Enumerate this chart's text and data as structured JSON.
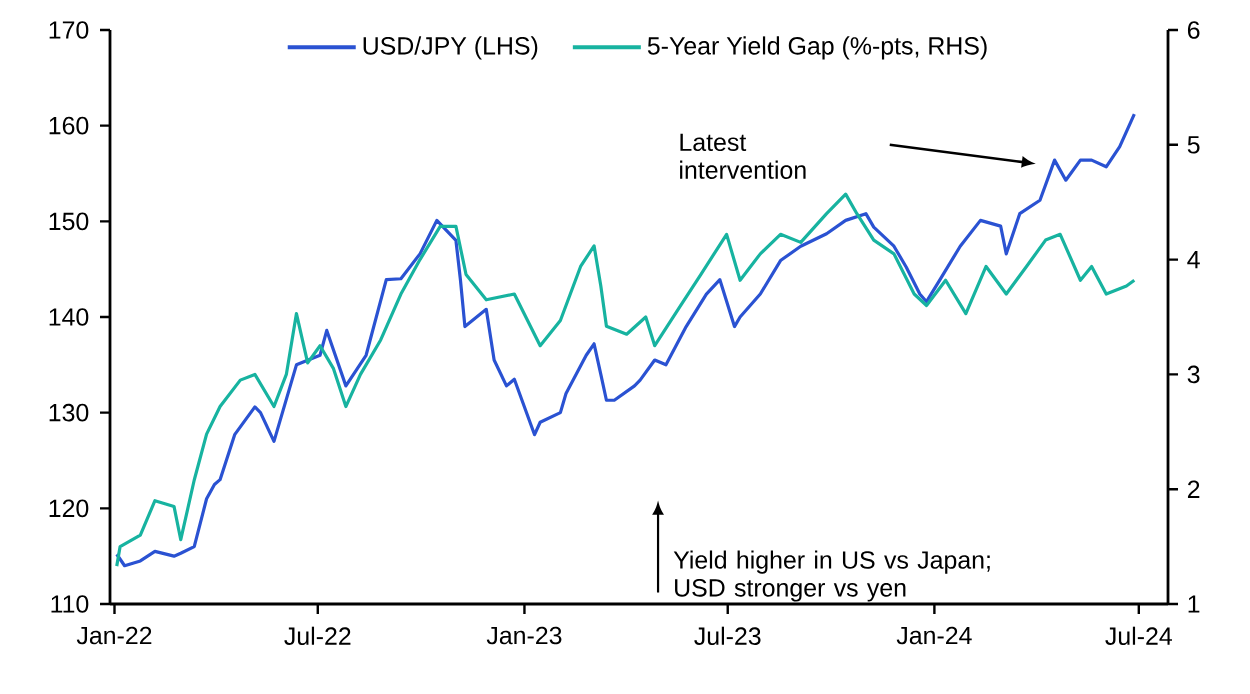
{
  "chart_data": {
    "type": "line",
    "series": [
      {
        "name": "USD/JPY (LHS)",
        "color": "#2a52d2",
        "axis": "y",
        "x": [
          "2022-01-03",
          "2022-01-10",
          "2022-01-24",
          "2022-02-06",
          "2022-02-23",
          "2022-03-01",
          "2022-03-13",
          "2022-03-24",
          "2022-03-31",
          "2022-04-05",
          "2022-04-18",
          "2022-05-06",
          "2022-05-11",
          "2022-05-23",
          "2022-06-12",
          "2022-07-03",
          "2022-07-09",
          "2022-07-26",
          "2022-08-13",
          "2022-08-31",
          "2022-09-13",
          "2022-09-30",
          "2022-10-15",
          "2022-11-01",
          "2022-11-05",
          "2022-11-09",
          "2022-11-28",
          "2022-12-05",
          "2022-12-16",
          "2022-12-23",
          "2023-01-10",
          "2023-01-15",
          "2023-02-02",
          "2023-02-07",
          "2023-02-25",
          "2023-03-04",
          "2023-03-10",
          "2023-03-15",
          "2023-03-22",
          "2023-04-09",
          "2023-04-14",
          "2023-04-27",
          "2023-05-07",
          "2023-05-25",
          "2023-06-12",
          "2023-06-24",
          "2023-07-07",
          "2023-07-12",
          "2023-07-30",
          "2023-08-17",
          "2023-09-04",
          "2023-09-27",
          "2023-10-14",
          "2023-11-01",
          "2023-11-08",
          "2023-11-26",
          "2023-12-07",
          "2023-12-19",
          "2023-12-25",
          "2024-01-06",
          "2024-01-24",
          "2024-02-11",
          "2024-02-29",
          "2024-03-05",
          "2024-03-17",
          "2024-04-04",
          "2024-04-17",
          "2024-04-27",
          "2024-05-10",
          "2024-05-20",
          "2024-06-02",
          "2024-06-14",
          "2024-06-27"
        ],
        "values": [
          115.2,
          114,
          114.5,
          115.5,
          115,
          115.3,
          116,
          121,
          122.5,
          123,
          127.7,
          130.6,
          130,
          127,
          135,
          136,
          138.6,
          132.8,
          136,
          143.9,
          144,
          146.6,
          150.1,
          148,
          143.9,
          139,
          140.8,
          135.5,
          132.8,
          133.5,
          127.7,
          129,
          130,
          132,
          136,
          137.2,
          134,
          131.3,
          131.3,
          132.8,
          133.4,
          135.5,
          135,
          139,
          142.4,
          143.9,
          139,
          140,
          142.4,
          145.9,
          147.4,
          148.7,
          150.1,
          150.8,
          149.4,
          147.4,
          145.2,
          142.4,
          141.6,
          143.9,
          147.4,
          150.1,
          149.5,
          146.6,
          150.8,
          152.2,
          156.4,
          154.3,
          156.4,
          156.4,
          155.7,
          157.8,
          161.2
        ]
      },
      {
        "name": "5-Year Yield Gap (%-pts, RHS)",
        "color": "#17b3a0",
        "axis": "y2",
        "x": [
          "2022-01-03",
          "2022-01-06",
          "2022-01-24",
          "2022-02-06",
          "2022-02-23",
          "2022-03-01",
          "2022-03-13",
          "2022-03-24",
          "2022-04-05",
          "2022-04-23",
          "2022-05-06",
          "2022-05-23",
          "2022-06-03",
          "2022-06-12",
          "2022-06-22",
          "2022-07-03",
          "2022-07-15",
          "2022-07-26",
          "2022-08-08",
          "2022-08-26",
          "2022-09-13",
          "2022-09-30",
          "2022-10-18",
          "2022-11-01",
          "2022-11-10",
          "2022-11-28",
          "2022-12-23",
          "2023-01-15",
          "2023-02-02",
          "2023-02-20",
          "2023-03-04",
          "2023-03-10",
          "2023-03-15",
          "2023-04-02",
          "2023-04-19",
          "2023-04-27",
          "2023-05-20",
          "2023-06-07",
          "2023-06-30",
          "2023-07-12",
          "2023-07-30",
          "2023-08-17",
          "2023-09-04",
          "2023-09-27",
          "2023-10-14",
          "2023-10-24",
          "2023-11-08",
          "2023-11-26",
          "2023-12-14",
          "2023-12-25",
          "2024-01-11",
          "2024-01-29",
          "2024-02-16",
          "2024-03-05",
          "2024-03-23",
          "2024-04-09",
          "2024-04-22",
          "2024-05-10",
          "2024-05-20",
          "2024-06-02",
          "2024-06-20",
          "2024-06-27"
        ],
        "values": [
          1.33,
          1.5,
          1.6,
          1.9,
          1.85,
          1.56,
          2.08,
          2.48,
          2.72,
          2.95,
          3.0,
          2.72,
          3.0,
          3.53,
          3.1,
          3.25,
          3.05,
          2.72,
          3.0,
          3.3,
          3.7,
          4.0,
          4.29,
          4.29,
          3.87,
          3.65,
          3.7,
          3.25,
          3.47,
          3.94,
          4.12,
          3.77,
          3.42,
          3.35,
          3.5,
          3.25,
          3.6,
          3.87,
          4.22,
          3.82,
          4.05,
          4.22,
          4.15,
          4.4,
          4.57,
          4.4,
          4.17,
          4.05,
          3.7,
          3.6,
          3.82,
          3.53,
          3.94,
          3.7,
          3.94,
          4.17,
          4.22,
          3.82,
          3.94,
          3.7,
          3.77,
          3.82
        ]
      }
    ],
    "xlim": [
      "2021-12-28",
      "2024-07-27"
    ],
    "xticks": [
      {
        "value": "2022-01-01",
        "label": "Jan-22"
      },
      {
        "value": "2022-07-01",
        "label": "Jul-22"
      },
      {
        "value": "2023-01-01",
        "label": "Jan-23"
      },
      {
        "value": "2023-07-01",
        "label": "Jul-23"
      },
      {
        "value": "2024-01-01",
        "label": "Jan-24"
      },
      {
        "value": "2024-07-01",
        "label": "Jul-24"
      }
    ],
    "ylim": [
      110,
      170
    ],
    "yticks": [
      110,
      120,
      130,
      140,
      150,
      160,
      170
    ],
    "y2lim": [
      1,
      6
    ],
    "y2ticks": [
      1,
      2,
      3,
      4,
      5,
      6
    ],
    "legend": "top",
    "annotations": [
      "Latest intervention",
      "Yield higher in US vs Japan; USD stronger vs yen"
    ]
  }
}
